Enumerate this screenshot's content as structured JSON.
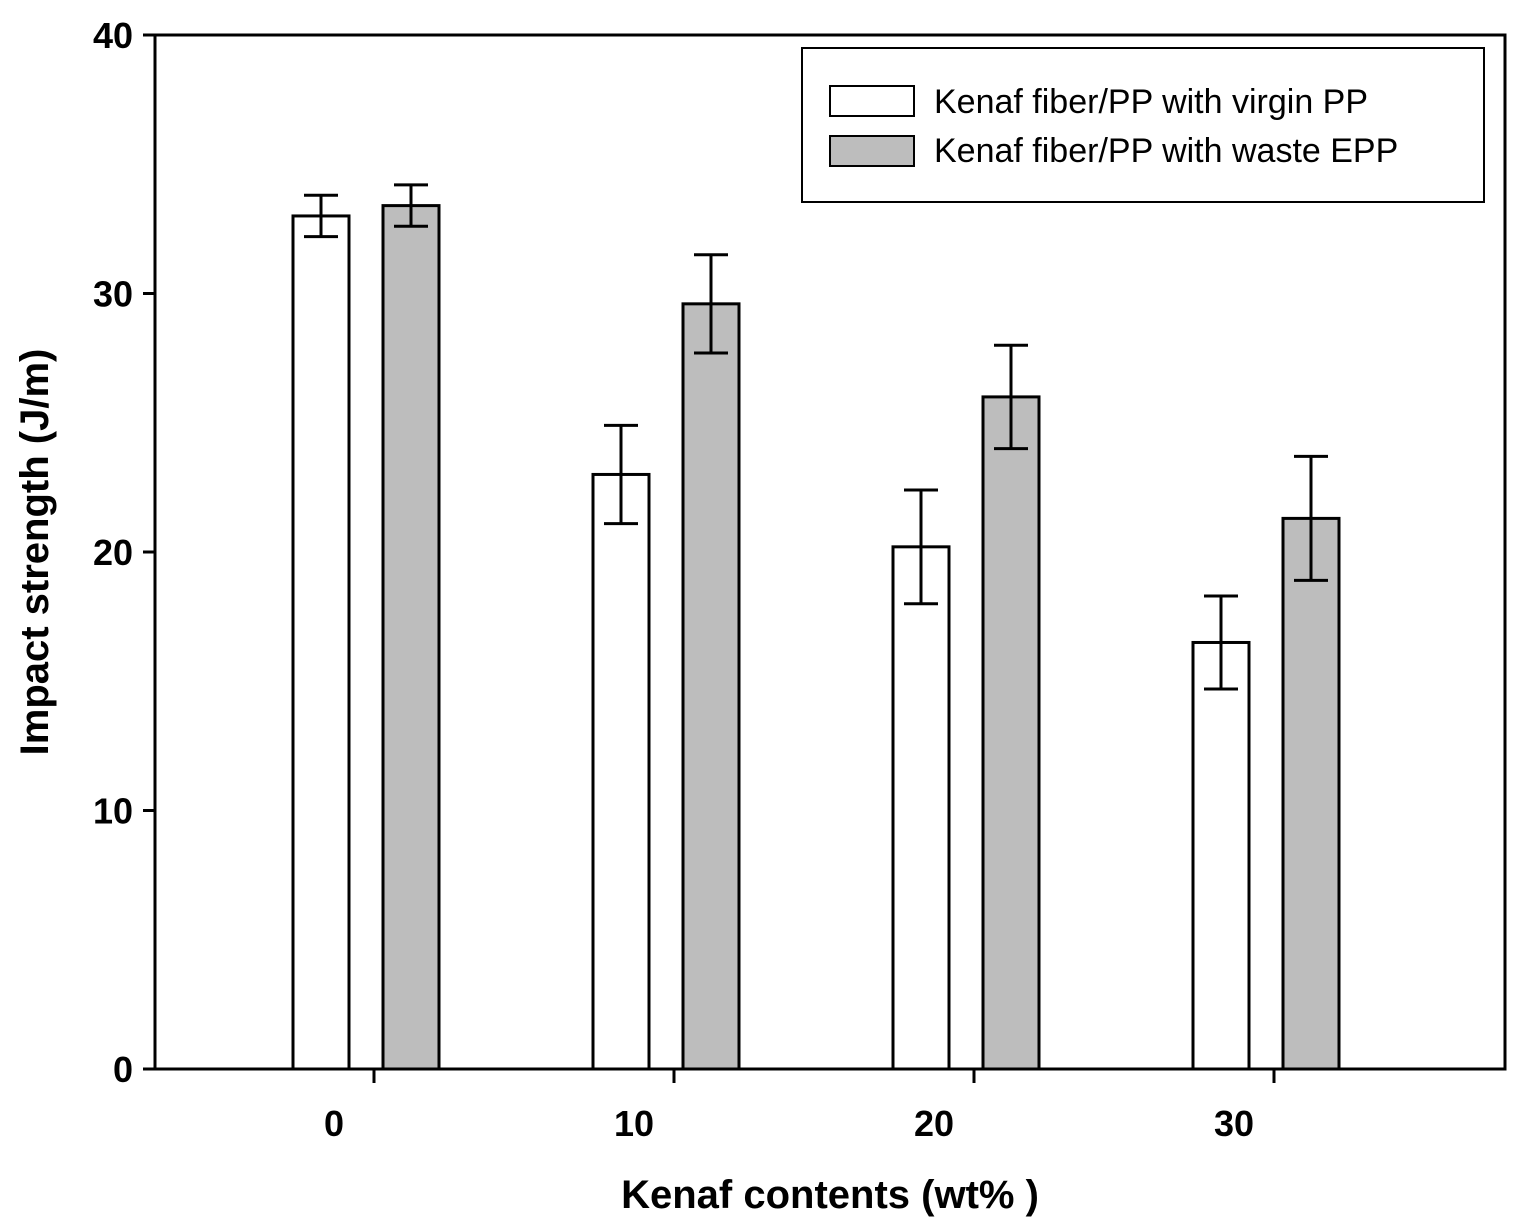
{
  "chart_data": {
    "type": "bar",
    "title": "",
    "xlabel": "Kenaf contents (wt% )",
    "ylabel": "Impact strength (J/m)",
    "ylim": [
      0,
      40
    ],
    "yticks": [
      "0",
      "10",
      "20",
      "30",
      "40"
    ],
    "categories": [
      "0",
      "10",
      "20",
      "30"
    ],
    "legend_position": "top-right",
    "series": [
      {
        "name": "Kenaf fiber/PP with virgin PP",
        "color": "#ffffff",
        "values": [
          33.0,
          23.0,
          20.2,
          16.5
        ],
        "errors": [
          0.8,
          1.9,
          2.2,
          1.8
        ]
      },
      {
        "name": "Kenaf fiber/PP with waste EPP",
        "color": "#bdbdbd",
        "values": [
          33.4,
          29.6,
          26.0,
          21.3
        ],
        "errors": [
          0.8,
          1.9,
          2.0,
          2.4
        ]
      }
    ]
  }
}
